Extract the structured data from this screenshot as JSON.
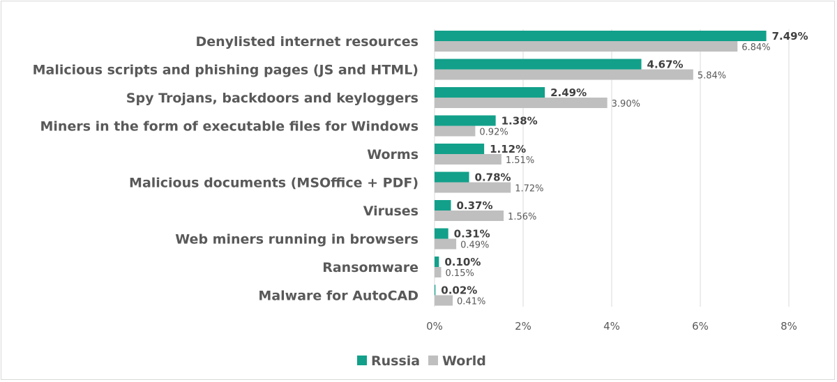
{
  "chart_data": {
    "type": "bar",
    "orientation": "horizontal",
    "title": "",
    "xlabel": "",
    "ylabel": "",
    "categories": [
      "Denylisted internet resources",
      "Malicious scripts and phishing pages (JS and HTML)",
      "Spy Trojans, backdoors and keyloggers",
      "Miners in the form of executable files for Windows",
      "Worms",
      "Malicious documents (MSOffice + PDF)",
      "Viruses",
      "Web miners running in browsers",
      "Ransomware",
      "Malware for AutoCAD"
    ],
    "series": [
      {
        "name": "Russia",
        "color": "#12a08a",
        "values": [
          7.49,
          4.67,
          2.49,
          1.38,
          1.12,
          0.78,
          0.37,
          0.31,
          0.1,
          0.02
        ],
        "labels": [
          "7.49%",
          "4.67%",
          "2.49%",
          "1.38%",
          "1.12%",
          "0.78%",
          "0.37%",
          "0.31%",
          "0.10%",
          "0.02%"
        ]
      },
      {
        "name": "World",
        "color": "#bfbfbf",
        "values": [
          6.84,
          5.84,
          3.9,
          0.92,
          1.51,
          1.72,
          1.56,
          0.49,
          0.15,
          0.41
        ],
        "labels": [
          "6.84%",
          "5.84%",
          "3.90%",
          "0.92%",
          "1.51%",
          "1.72%",
          "1.56%",
          "0.49%",
          "0.15%",
          "0.41%"
        ]
      }
    ],
    "xlim": [
      0,
      8
    ],
    "xticks": [
      0,
      2,
      4,
      6,
      8
    ],
    "xtick_labels": [
      "0%",
      "2%",
      "4%",
      "6%",
      "8%"
    ],
    "grid": "vertical",
    "gridline_color": "#d9d9d9",
    "legend": {
      "position": "bottom",
      "entries": [
        "Russia",
        "World"
      ]
    }
  }
}
